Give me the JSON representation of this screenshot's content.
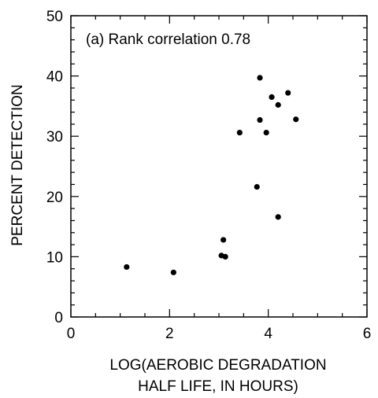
{
  "chart_data": {
    "type": "scatter",
    "title": "",
    "annotation": "(a) Rank correlation 0.78",
    "xlabel_lines": [
      "LOG(AEROBIC DEGRADATION",
      "HALF LIFE, IN HOURS)"
    ],
    "ylabel": "PERCENT DETECTION",
    "xlim": [
      0,
      6
    ],
    "ylim": [
      0,
      50
    ],
    "x_ticks": [
      0,
      2,
      4,
      6
    ],
    "y_ticks": [
      0,
      10,
      20,
      30,
      40,
      50
    ],
    "x_minor_step": 0.5,
    "y_minor_step": 2,
    "grid": false,
    "points": [
      {
        "x": 1.13,
        "y": 8.3
      },
      {
        "x": 2.08,
        "y": 7.4
      },
      {
        "x": 3.05,
        "y": 10.2
      },
      {
        "x": 3.13,
        "y": 10.0
      },
      {
        "x": 3.09,
        "y": 12.8
      },
      {
        "x": 3.42,
        "y": 30.6
      },
      {
        "x": 3.77,
        "y": 21.6
      },
      {
        "x": 3.83,
        "y": 32.7
      },
      {
        "x": 3.83,
        "y": 39.7
      },
      {
        "x": 3.96,
        "y": 30.6
      },
      {
        "x": 4.07,
        "y": 36.5
      },
      {
        "x": 4.2,
        "y": 35.2
      },
      {
        "x": 4.2,
        "y": 16.6
      },
      {
        "x": 4.4,
        "y": 37.2
      },
      {
        "x": 4.56,
        "y": 32.8
      }
    ],
    "marker_color": "#000000"
  }
}
